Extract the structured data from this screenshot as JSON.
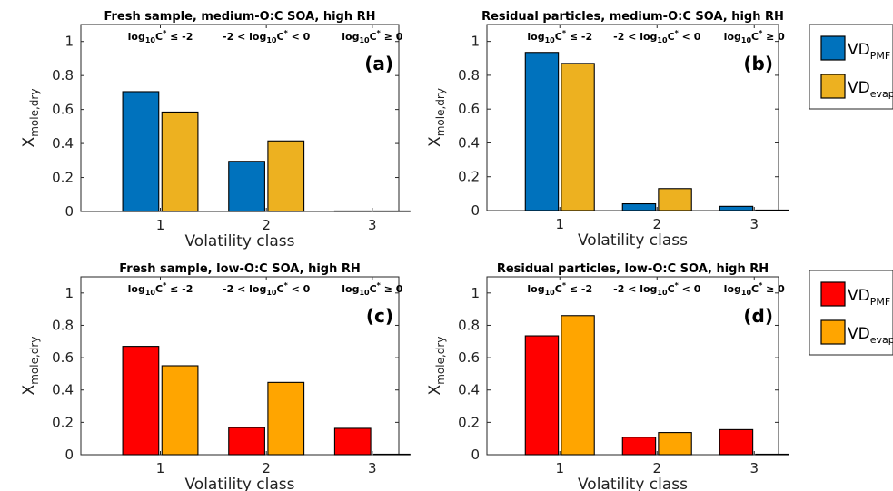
{
  "series_colors": {
    "blue": "#0072bd",
    "gold": "#edb120",
    "red": "#ff0000",
    "orange": "#ffa500"
  },
  "region_labels": [
    {
      "pre": "log",
      "sub": "10",
      "mid": "C",
      "sup": "*",
      "post": " ≤ -2"
    },
    {
      "pre": "-2 < log",
      "sub": "10",
      "mid": "C",
      "sup": "*",
      "post": " < 0"
    },
    {
      "pre": "log",
      "sub": "10",
      "mid": "C",
      "sup": "*",
      "post": " ≥ 0"
    }
  ],
  "legends": [
    {
      "entries": [
        {
          "base": "VD",
          "sub": "PMF",
          "color": "#0072bd"
        },
        {
          "base": "VD",
          "sub": "evap",
          "color": "#edb120"
        }
      ]
    },
    {
      "entries": [
        {
          "base": "VD",
          "sub": "PMF",
          "color": "#ff0000"
        },
        {
          "base": "VD",
          "sub": "evap",
          "color": "#ffa500"
        }
      ]
    }
  ],
  "chart_data": [
    {
      "type": "bar",
      "panel": "(a)",
      "title": "Fresh sample, medium-O:C SOA, high RH",
      "xlabel": "Volatility class",
      "ylabel_base": "X",
      "ylabel_sub": "mole,dry",
      "categories": [
        "1",
        "2",
        "3"
      ],
      "ylim": [
        0,
        1.1
      ],
      "yticks": [
        "0",
        "0.2",
        "0.4",
        "0.6",
        "0.8",
        "1"
      ],
      "series": [
        {
          "name": "VD_PMF",
          "color": "#0072bd",
          "values": [
            0.705,
            0.295,
            0.003
          ]
        },
        {
          "name": "VD_evap",
          "color": "#edb120",
          "values": [
            0.585,
            0.415,
            0.003
          ]
        }
      ]
    },
    {
      "type": "bar",
      "panel": "(b)",
      "title": "Residual particles, medium-O:C SOA, high RH",
      "xlabel": "Volatility class",
      "ylabel_base": "X",
      "ylabel_sub": "mole,dry",
      "categories": [
        "1",
        "2",
        "3"
      ],
      "ylim": [
        0,
        1.1
      ],
      "yticks": [
        "0",
        "0.2",
        "0.4",
        "0.6",
        "0.8",
        "1"
      ],
      "series": [
        {
          "name": "VD_PMF",
          "color": "#0072bd",
          "values": [
            0.935,
            0.04,
            0.025
          ]
        },
        {
          "name": "VD_evap",
          "color": "#edb120",
          "values": [
            0.87,
            0.13,
            0.003
          ]
        }
      ]
    },
    {
      "type": "bar",
      "panel": "(c)",
      "title": "Fresh sample, low-O:C SOA, high RH",
      "xlabel": "Volatility class",
      "ylabel_base": "X",
      "ylabel_sub": "mole,dry",
      "categories": [
        "1",
        "2",
        "3"
      ],
      "ylim": [
        0,
        1.1
      ],
      "yticks": [
        "0",
        "0.2",
        "0.4",
        "0.6",
        "0.8",
        "1"
      ],
      "series": [
        {
          "name": "VD_PMF",
          "color": "#ff0000",
          "values": [
            0.67,
            0.168,
            0.163
          ]
        },
        {
          "name": "VD_evap",
          "color": "#ffa500",
          "values": [
            0.55,
            0.447,
            0.003
          ]
        }
      ]
    },
    {
      "type": "bar",
      "panel": "(d)",
      "title": "Residual particles, low-O:C SOA, high RH",
      "xlabel": "Volatility class",
      "ylabel_base": "X",
      "ylabel_sub": "mole,dry",
      "categories": [
        "1",
        "2",
        "3"
      ],
      "ylim": [
        0,
        1.1
      ],
      "yticks": [
        "0",
        "0.2",
        "0.4",
        "0.6",
        "0.8",
        "1"
      ],
      "series": [
        {
          "name": "VD_PMF",
          "color": "#ff0000",
          "values": [
            0.735,
            0.108,
            0.155
          ]
        },
        {
          "name": "VD_evap",
          "color": "#ffa500",
          "values": [
            0.86,
            0.137,
            0.003
          ]
        }
      ]
    }
  ]
}
